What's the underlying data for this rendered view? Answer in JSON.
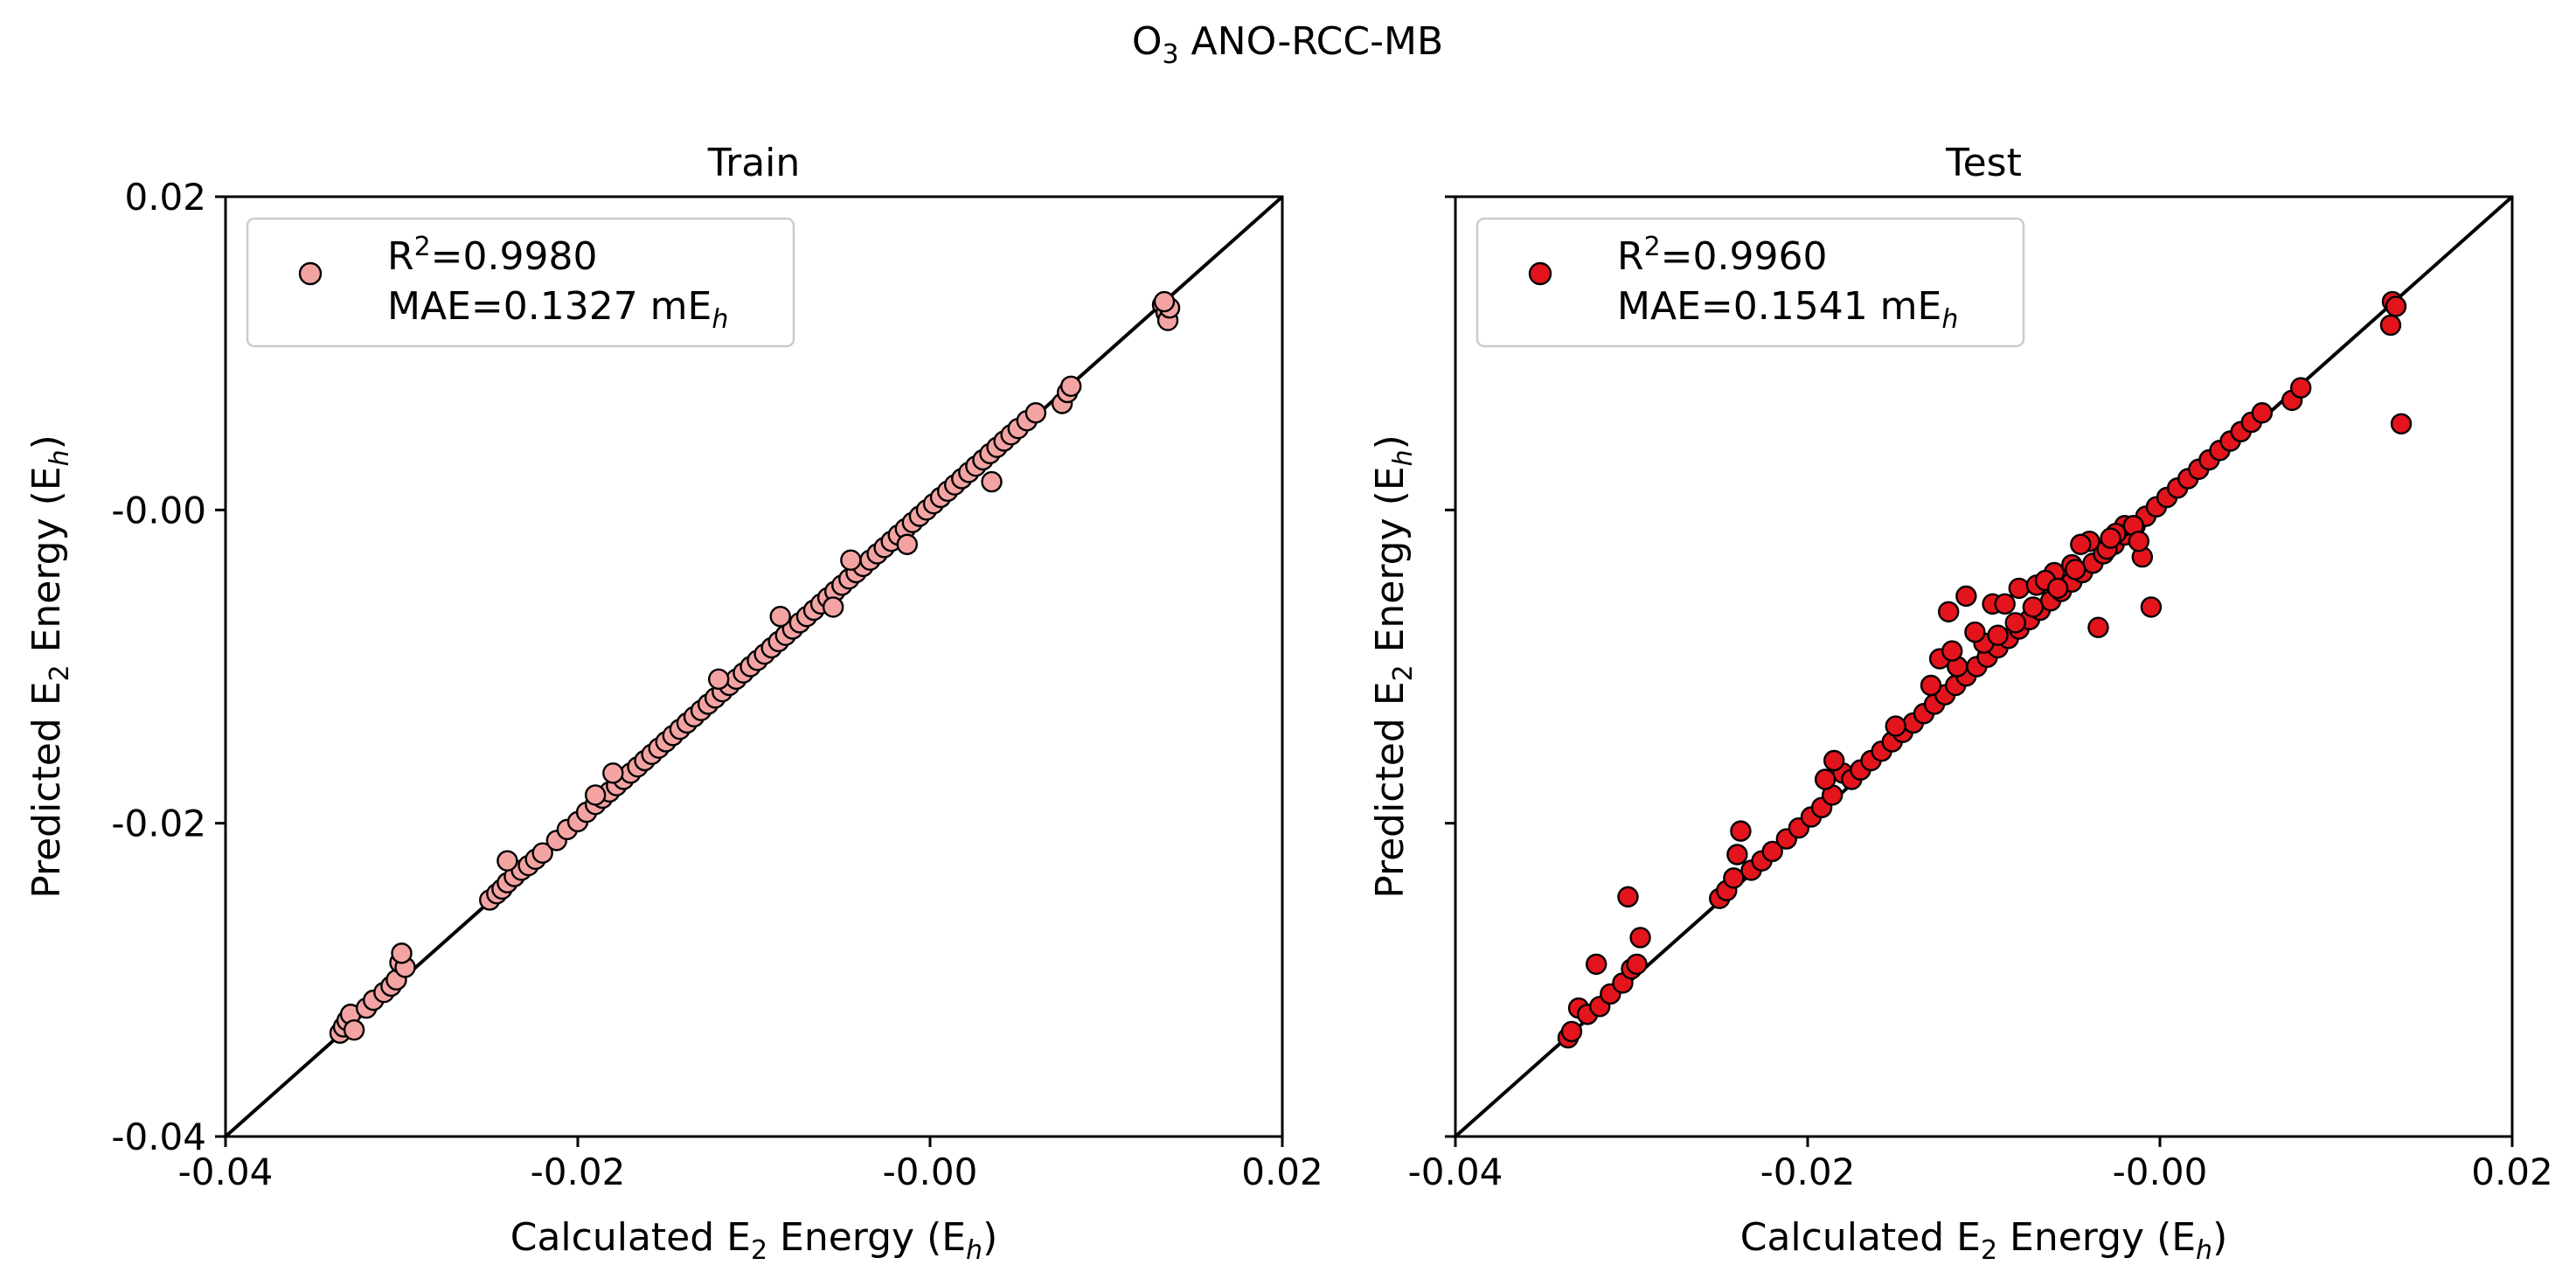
{
  "figure": {
    "title_main": "O",
    "title_sub": "3",
    "title_rest": " ANO-RCC-MB"
  },
  "chart_data": [
    {
      "type": "scatter",
      "title": "Train",
      "xlabel": {
        "pre": "Calculated E",
        "sub": "2",
        "mid": " Energy (E",
        "sub2": "h",
        "post": ")"
      },
      "ylabel": {
        "pre": "Predicted E",
        "sub": "2",
        "mid": " Energy (E",
        "sub2": "h",
        "post": ")"
      },
      "xlim": [
        -0.04,
        0.02
      ],
      "ylim": [
        -0.04,
        0.02
      ],
      "xticks": [
        "-0.04",
        "-0.02",
        "-0.00",
        "0.02"
      ],
      "yticks": [
        "-0.04",
        "-0.02",
        "-0.00",
        "0.02"
      ],
      "show_yticklabels": true,
      "marker_color": "#f4a3a3",
      "edge_color": "#000000",
      "legend": {
        "r2_pre": "R",
        "r2_sup": "2",
        "r2_val": "=0.9980",
        "mae_pre": "MAE=0.1327 mE",
        "mae_sub": "h",
        "placement": "top-left"
      },
      "series": [
        {
          "x": [
            -0.0335,
            -0.0333,
            -0.0331,
            -0.0329,
            -0.0327,
            -0.032,
            -0.0316,
            -0.031,
            -0.0306,
            -0.0303,
            -0.0301,
            -0.0298,
            -0.025,
            -0.0246,
            -0.0243,
            -0.024,
            -0.0236,
            -0.0232,
            -0.0228,
            -0.0224,
            -0.022,
            -0.0212,
            -0.0206,
            -0.02,
            -0.0195,
            -0.019,
            -0.0186,
            -0.0182,
            -0.0178,
            -0.0174,
            -0.017,
            -0.0166,
            -0.0162,
            -0.0158,
            -0.0154,
            -0.015,
            -0.0146,
            -0.0142,
            -0.0138,
            -0.0134,
            -0.013,
            -0.0126,
            -0.0122,
            -0.0118,
            -0.0114,
            -0.011,
            -0.0106,
            -0.0102,
            -0.0098,
            -0.0094,
            -0.009,
            -0.0086,
            -0.0082,
            -0.0078,
            -0.0074,
            -0.007,
            -0.0066,
            -0.0062,
            -0.0058,
            -0.0054,
            -0.005,
            -0.0046,
            -0.0042,
            -0.0038,
            -0.0034,
            -0.003,
            -0.0026,
            -0.0022,
            -0.0018,
            -0.0014,
            -0.001,
            -0.0006,
            -0.0002,
            0.0002,
            0.0006,
            0.001,
            0.0014,
            0.0018,
            0.0022,
            0.0026,
            0.003,
            0.0034,
            0.0038,
            0.0042,
            0.0046,
            0.005,
            0.0055,
            0.006,
            0.0075,
            0.0078,
            0.008,
            0.0132,
            0.0134,
            0.0135,
            0.0136,
            0.0133,
            -0.024,
            -0.018,
            -0.0045,
            -0.019,
            -0.03,
            -0.0085,
            -0.0055,
            0.0035,
            -0.012,
            -0.0013
          ],
          "y": [
            -0.0334,
            -0.033,
            -0.0326,
            -0.0322,
            -0.0332,
            -0.0318,
            -0.0313,
            -0.0308,
            -0.0304,
            -0.03,
            -0.0289,
            -0.0292,
            -0.0249,
            -0.0245,
            -0.0242,
            -0.0238,
            -0.0234,
            -0.023,
            -0.0227,
            -0.0223,
            -0.0219,
            -0.0211,
            -0.0204,
            -0.0199,
            -0.0193,
            -0.0188,
            -0.0184,
            -0.018,
            -0.0176,
            -0.0172,
            -0.0168,
            -0.0164,
            -0.016,
            -0.0156,
            -0.0152,
            -0.0148,
            -0.0144,
            -0.014,
            -0.0136,
            -0.0132,
            -0.0128,
            -0.0124,
            -0.012,
            -0.0116,
            -0.0112,
            -0.0108,
            -0.0104,
            -0.01,
            -0.0096,
            -0.0092,
            -0.0088,
            -0.0084,
            -0.008,
            -0.0076,
            -0.0072,
            -0.0068,
            -0.0064,
            -0.006,
            -0.0056,
            -0.0052,
            -0.0048,
            -0.0044,
            -0.004,
            -0.0036,
            -0.0032,
            -0.0028,
            -0.0024,
            -0.002,
            -0.0016,
            -0.0012,
            -0.0008,
            -0.0004,
            0.0,
            0.0004,
            0.0008,
            0.0012,
            0.0016,
            0.002,
            0.0024,
            0.0028,
            0.0032,
            0.0036,
            0.004,
            0.0044,
            0.0048,
            0.0052,
            0.0057,
            0.0062,
            0.0068,
            0.0075,
            0.0079,
            0.0131,
            0.0126,
            0.0121,
            0.0129,
            0.0133,
            -0.0224,
            -0.0168,
            -0.0032,
            -0.0182,
            -0.0283,
            -0.0068,
            -0.0062,
            0.0018,
            -0.0108,
            -0.0022
          ]
        }
      ]
    },
    {
      "type": "scatter",
      "title": "Test",
      "xlabel": {
        "pre": "Calculated E",
        "sub": "2",
        "mid": " Energy (E",
        "sub2": "h",
        "post": ")"
      },
      "ylabel": {
        "pre": "Predicted E",
        "sub": "2",
        "mid": " Energy (E",
        "sub2": "h",
        "post": ")"
      },
      "xlim": [
        -0.04,
        0.02
      ],
      "ylim": [
        -0.04,
        0.02
      ],
      "xticks": [
        "-0.04",
        "-0.02",
        "-0.00",
        "0.02"
      ],
      "yticks": [
        "-0.04",
        "-0.02",
        "-0.00",
        "0.02"
      ],
      "show_yticklabels": false,
      "marker_color": "#e3141c",
      "edge_color": "#000000",
      "legend": {
        "r2_pre": "R",
        "r2_sup": "2",
        "r2_val": "=0.9960",
        "mae_pre": "MAE=0.1541 mE",
        "mae_sub": "h",
        "placement": "top-left"
      },
      "series": [
        {
          "x": [
            -0.0336,
            -0.0334,
            -0.033,
            -0.0325,
            -0.0318,
            -0.0312,
            -0.0305,
            -0.03,
            -0.0297,
            -0.032,
            -0.0302,
            -0.0295,
            -0.025,
            -0.0246,
            -0.0242,
            -0.024,
            -0.0238,
            -0.0232,
            -0.0226,
            -0.022,
            -0.0212,
            -0.0205,
            -0.0198,
            -0.0192,
            -0.0186,
            -0.018,
            -0.0175,
            -0.017,
            -0.0164,
            -0.0158,
            -0.0152,
            -0.0146,
            -0.014,
            -0.0134,
            -0.0128,
            -0.0122,
            -0.0116,
            -0.011,
            -0.0104,
            -0.0098,
            -0.0092,
            -0.0086,
            -0.008,
            -0.0074,
            -0.0068,
            -0.0062,
            -0.0056,
            -0.005,
            -0.0044,
            -0.0038,
            -0.0032,
            -0.0026,
            -0.002,
            -0.0014,
            -0.0008,
            -0.0002,
            0.0004,
            0.001,
            0.0016,
            0.0022,
            0.0028,
            0.0034,
            0.004,
            0.0046,
            0.0052,
            0.0058,
            0.0075,
            0.008,
            0.0132,
            0.0134,
            0.0131,
            0.0137,
            -0.019,
            -0.0185,
            -0.012,
            -0.011,
            -0.0095,
            -0.008,
            -0.006,
            -0.004,
            -0.002,
            -0.0005,
            -0.015,
            -0.013,
            -0.01,
            -0.007,
            -0.0045,
            -0.0025,
            -0.001,
            -0.0125,
            -0.0105,
            -0.0088,
            -0.0065,
            -0.005,
            -0.003,
            -0.0015,
            -0.0035,
            -0.0115,
            -0.0082,
            -0.0058,
            -0.0118,
            -0.0092,
            -0.0072,
            -0.0048,
            -0.0028,
            -0.0012
          ],
          "y": [
            -0.0337,
            -0.0333,
            -0.0318,
            -0.0322,
            -0.0317,
            -0.0309,
            -0.0302,
            -0.0293,
            -0.029,
            -0.029,
            -0.0247,
            -0.0273,
            -0.0248,
            -0.0243,
            -0.0235,
            -0.022,
            -0.0205,
            -0.023,
            -0.0224,
            -0.0218,
            -0.021,
            -0.0203,
            -0.0196,
            -0.019,
            -0.0182,
            -0.0168,
            -0.0172,
            -0.0166,
            -0.016,
            -0.0154,
            -0.0148,
            -0.0142,
            -0.0136,
            -0.013,
            -0.0124,
            -0.0118,
            -0.0112,
            -0.0106,
            -0.01,
            -0.0094,
            -0.0088,
            -0.0082,
            -0.0076,
            -0.007,
            -0.0064,
            -0.0058,
            -0.0052,
            -0.0046,
            -0.004,
            -0.0034,
            -0.0028,
            -0.0022,
            -0.0016,
            -0.001,
            -0.0004,
            0.0002,
            0.0008,
            0.0014,
            0.002,
            0.0026,
            0.0032,
            0.0038,
            0.0044,
            0.005,
            0.0056,
            0.0062,
            0.007,
            0.0078,
            0.0133,
            0.013,
            0.0118,
            0.0055,
            -0.0172,
            -0.016,
            -0.0065,
            -0.0055,
            -0.006,
            -0.005,
            -0.004,
            -0.002,
            -0.001,
            -0.0062,
            -0.0138,
            -0.0112,
            -0.0085,
            -0.0048,
            -0.0022,
            -0.0015,
            -0.003,
            -0.0095,
            -0.0078,
            -0.006,
            -0.0045,
            -0.0035,
            -0.0025,
            -0.001,
            -0.0075,
            -0.01,
            -0.0072,
            -0.005,
            -0.009,
            -0.008,
            -0.0062,
            -0.0038,
            -0.0018,
            -0.002
          ]
        }
      ]
    }
  ]
}
